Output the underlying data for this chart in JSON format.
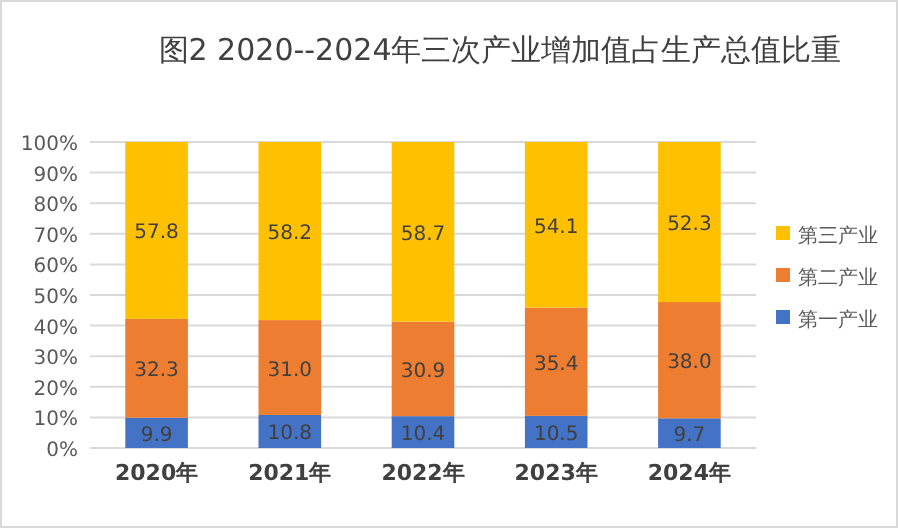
{
  "chart_data": {
    "type": "bar",
    "stacked": true,
    "title": "图2  2020--2024年三次产业增加值占生产总值比重",
    "categories": [
      "2020年",
      "2021年",
      "2022年",
      "2023年",
      "2024年"
    ],
    "series": [
      {
        "name": "第一产业",
        "color": "#4472c4",
        "values": [
          9.9,
          10.8,
          10.4,
          10.5,
          9.7
        ],
        "value_labels": [
          "9.9",
          "10.8",
          "10.4",
          "10.5",
          "9.7"
        ]
      },
      {
        "name": "第二产业",
        "color": "#ed7d31",
        "values": [
          32.3,
          31.0,
          30.9,
          35.4,
          38.0
        ],
        "value_labels": [
          "32.3",
          "31.0",
          "30.9",
          "35.4",
          "38.0"
        ]
      },
      {
        "name": "第三产业",
        "color": "#ffc000",
        "values": [
          57.8,
          58.2,
          58.7,
          54.1,
          52.3
        ],
        "value_labels": [
          "57.8",
          "58.2",
          "58.7",
          "54.1",
          "52.3"
        ]
      }
    ],
    "ylim": [
      0,
      100
    ],
    "yticks": [
      {
        "value": 0,
        "label": "0%"
      },
      {
        "value": 10,
        "label": "10%"
      },
      {
        "value": 20,
        "label": "20%"
      },
      {
        "value": 30,
        "label": "30%"
      },
      {
        "value": 40,
        "label": "40%"
      },
      {
        "value": 50,
        "label": "50%"
      },
      {
        "value": 60,
        "label": "60%"
      },
      {
        "value": 70,
        "label": "70%"
      },
      {
        "value": 80,
        "label": "80%"
      },
      {
        "value": 90,
        "label": "90%"
      },
      {
        "value": 100,
        "label": "100%"
      }
    ],
    "grid": "y",
    "legend": "right"
  }
}
